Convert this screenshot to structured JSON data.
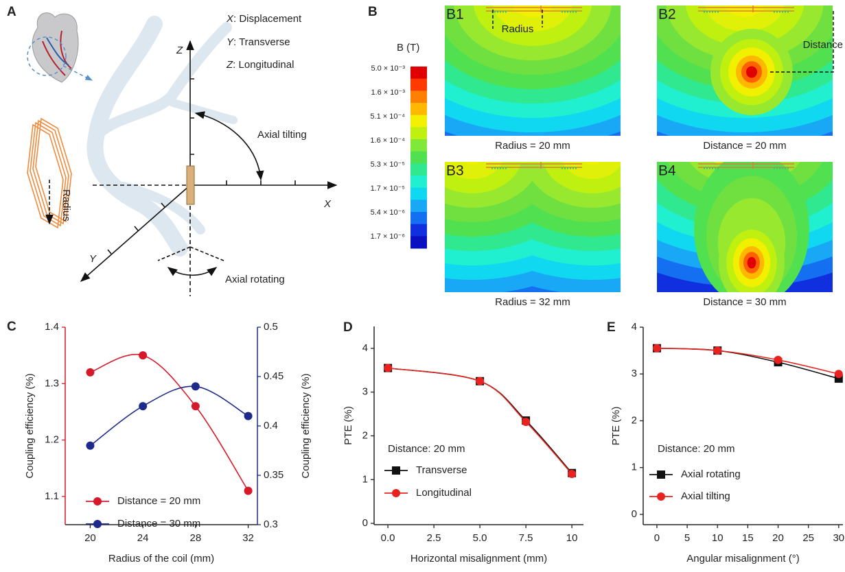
{
  "panel_a": {
    "label": "A",
    "legend": [
      {
        "symbol": "X",
        "text": ": Displacement"
      },
      {
        "symbol": "Y",
        "text": ": Transverse"
      },
      {
        "symbol": "Z",
        "text": ": Longitudinal"
      }
    ],
    "axes": {
      "x": "X",
      "y": "Y",
      "z": "Z"
    },
    "annotations": {
      "tilting": "Axial tilting",
      "rotating": "Axial rotating",
      "radius": "Radius"
    }
  },
  "panel_b": {
    "label": "B",
    "colorbar_title": "B (T)",
    "colorbar_labels": [
      "5.0 × 10⁻³",
      "1.6 × 10⁻³",
      "5.1 × 10⁻⁴",
      "1.6 × 10⁻⁴",
      "5.3 × 10⁻⁵",
      "1.7 × 10⁻⁵",
      "5.4 × 10⁻⁶",
      "1.7 × 10⁻⁶"
    ],
    "maps": [
      {
        "label": "B1",
        "caption": "Radius = 20 mm",
        "annotation": "Radius"
      },
      {
        "label": "B2",
        "caption": "Distance = 20 mm",
        "annotation": "Distance"
      },
      {
        "label": "B3",
        "caption": "Radius = 32 mm"
      },
      {
        "label": "B4",
        "caption": "Distance = 30 mm"
      }
    ]
  },
  "chart_data": [
    {
      "type": "line",
      "panel_label": "C",
      "x": [
        20,
        24,
        28,
        32
      ],
      "xlim": [
        18.1,
        32.7
      ],
      "xticks": [
        20,
        24,
        28,
        32
      ],
      "xlabel": "Radius of the coil (mm)",
      "ylabel": "Coupling efficiency (%)",
      "y2label": "Coupling efficiency (%)",
      "ylim": [
        1.05,
        1.4
      ],
      "yticks": [
        1.1,
        1.2,
        1.3,
        1.4
      ],
      "y2lim": [
        0.3,
        0.5
      ],
      "y2ticks": [
        0.3,
        0.35,
        0.4,
        0.45,
        0.5
      ],
      "series": [
        {
          "name": "Distance = 20 mm",
          "color": "#d7182a",
          "marker": "circle",
          "values": [
            1.32,
            1.35,
            1.26,
            1.11
          ]
        },
        {
          "name": "Distance = 30 mm",
          "color": "#1d2a8c",
          "marker": "circle",
          "axis": "y2",
          "values": [
            0.38,
            0.42,
            0.44,
            0.41
          ]
        }
      ],
      "legend": "lower left"
    },
    {
      "type": "line",
      "panel_label": "D",
      "x": [
        0,
        5,
        7.5,
        10
      ],
      "xlim": [
        -0.75,
        10.63
      ],
      "xticks": [
        {
          "value": 0,
          "label": "0.0"
        },
        2.5,
        {
          "value": 5,
          "label": "5.0"
        },
        7.5,
        10
      ],
      "xlabel": "Horizontal misalignment (mm)",
      "ylabel": "PTE (%)",
      "ylim": [
        -0.03,
        4.5
      ],
      "yticks": [
        0,
        1,
        2,
        3,
        4
      ],
      "annotation": "Distance: 20 mm",
      "series": [
        {
          "name": "Transverse",
          "color": "#111111",
          "marker": "square",
          "values": [
            3.55,
            3.25,
            2.35,
            1.15
          ]
        },
        {
          "name": "Longitudinal",
          "color": "#e8221f",
          "marker": "circle",
          "values": [
            3.55,
            3.25,
            2.32,
            1.13
          ]
        }
      ],
      "legend": "center left"
    },
    {
      "type": "line",
      "panel_label": "E",
      "x": [
        0,
        10,
        20,
        30
      ],
      "xlim": [
        -2.26,
        30.7
      ],
      "xticks": [
        0,
        5,
        10,
        15,
        20,
        25,
        30
      ],
      "xlabel": "Angular misalignment (°)",
      "ylabel": "PTE (%)",
      "ylim": [
        -0.22,
        4
      ],
      "yticks": [
        0,
        1,
        2,
        3,
        4
      ],
      "annotation": "Distance: 20 mm",
      "series": [
        {
          "name": "Axial rotating",
          "color": "#111111",
          "marker": "square",
          "values": [
            3.55,
            3.5,
            3.25,
            2.9
          ]
        },
        {
          "name": "Axial tilting",
          "color": "#e8221f",
          "marker": "circle",
          "values": [
            3.55,
            3.5,
            3.3,
            3.0
          ]
        }
      ],
      "legend": "center left"
    }
  ]
}
